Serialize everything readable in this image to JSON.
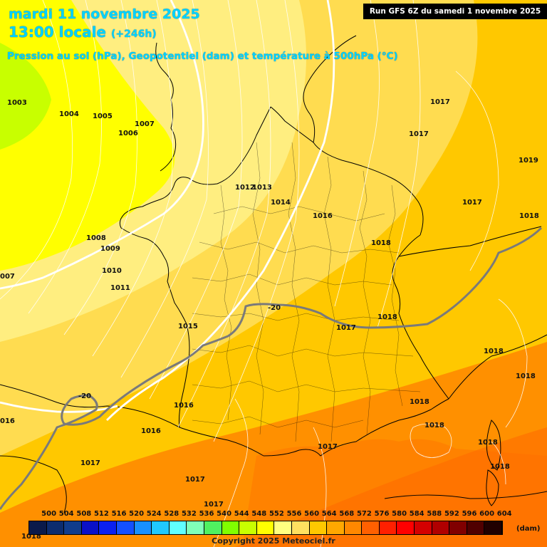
{
  "header": {
    "title": "mardi 11 novembre 2025",
    "local_time": "13:00 locale",
    "offset": "(+246h)",
    "subtitle": "Pression au sol (hPa), Geopotentiel (dam) et température à 500hPa (°C)"
  },
  "run_info": "Run GFS 6Z du samedi 1 novembre 2025",
  "copyright": "Copyright 2025 Meteociel.fr",
  "legend": {
    "unit": "(dam)",
    "values": [
      "500",
      "504",
      "508",
      "512",
      "516",
      "520",
      "524",
      "528",
      "532",
      "536",
      "540",
      "544",
      "548",
      "552",
      "556",
      "560",
      "564",
      "568",
      "572",
      "576",
      "580",
      "584",
      "588",
      "592",
      "596",
      "600",
      "604"
    ],
    "colors": [
      "#0a1a4a",
      "#0c2c6e",
      "#103c8c",
      "#0a10c8",
      "#0a20f0",
      "#1450ff",
      "#1890ff",
      "#20c8ff",
      "#60ffff",
      "#80ffb8",
      "#50f060",
      "#80ff00",
      "#c8ff00",
      "#ffff00",
      "#ffff80",
      "#ffe060",
      "#ffc800",
      "#ffa800",
      "#ff8800",
      "#ff6000",
      "#ff2000",
      "#ff0000",
      "#d40000",
      "#b00000",
      "#800000",
      "#500000",
      "#200000"
    ]
  },
  "temperature_labels": [
    "-20",
    "-20"
  ],
  "pressure_labels": [
    "1003",
    "1004",
    "1005",
    "1006",
    "1007",
    "1008",
    "1009",
    "1010",
    "1011",
    "1012",
    "1013",
    "1014",
    "1015",
    "1016",
    "1016",
    "1016",
    "1016",
    "1017",
    "1017",
    "1017",
    "1017",
    "1017",
    "1017",
    "1017",
    "1017",
    "1018",
    "1018",
    "1018",
    "1018",
    "1018",
    "1018",
    "1018",
    "1018",
    "1018",
    "1019",
    "007",
    "016",
    "1018"
  ]
}
